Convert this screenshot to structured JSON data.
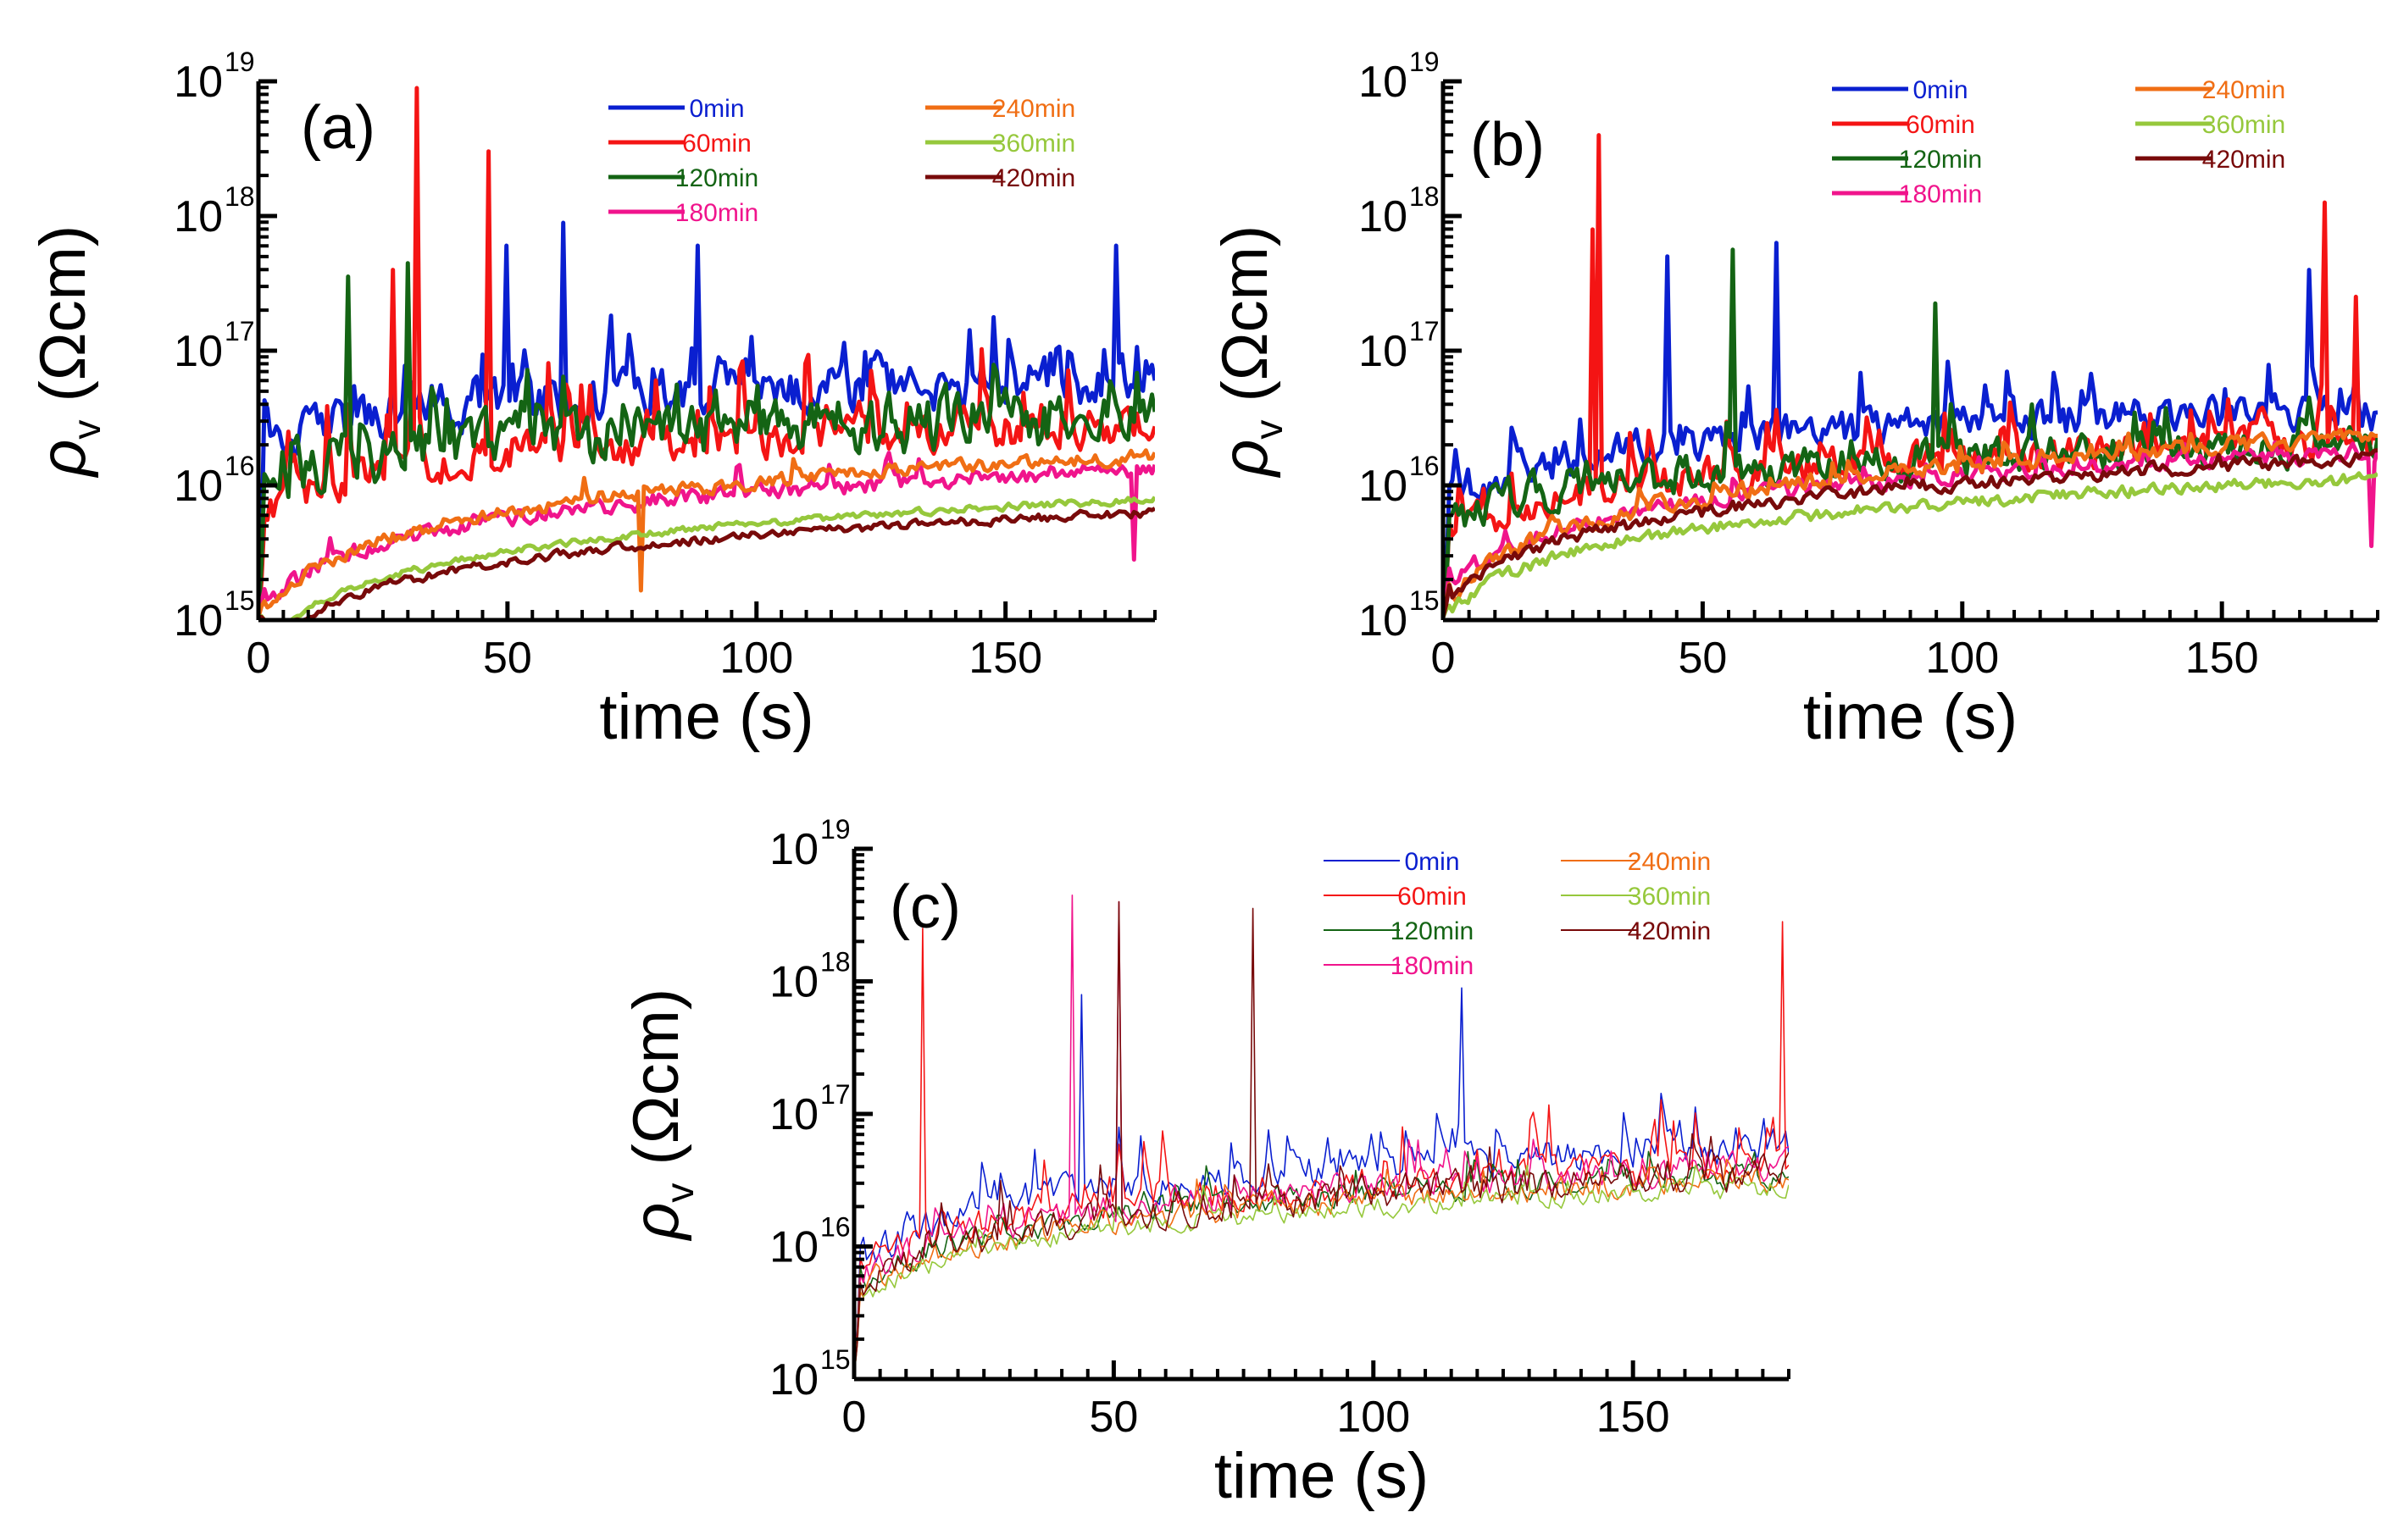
{
  "chart_data": [
    {
      "type": "line",
      "panel_label": "(a)",
      "xlabel": "time (s)",
      "ylabel_symbol": "ρ",
      "ylabel_sub": "v",
      "ylabel_unit": " (Ωcm)",
      "yscale": "log",
      "xlim": [
        0,
        180
      ],
      "ylim": [
        1000000000000000.0,
        1e+19
      ],
      "xticks": [
        "0",
        "50",
        "100",
        "150"
      ],
      "xtick_values": [
        0,
        50,
        100,
        150
      ],
      "yticks": [
        {
          "base": "10",
          "exp": "15",
          "value": 1000000000000000.0
        },
        {
          "base": "10",
          "exp": "16",
          "value": 1e+16
        },
        {
          "base": "10",
          "exp": "17",
          "value": 1e+17
        },
        {
          "base": "10",
          "exp": "18",
          "value": 1e+18
        },
        {
          "base": "10",
          "exp": "19",
          "value": 1e+19
        }
      ],
      "legend": "top-right",
      "line_weight": "thick",
      "series": [
        {
          "name": "0min",
          "color": "#0a1fd0",
          "base_log": 16.78,
          "rise": 0.35,
          "noise": 0.28,
          "spike_prob": 0.14,
          "spike_amp": 0.75,
          "peaks": [
            [
              61,
              17.95
            ],
            [
              50,
              17.78
            ],
            [
              88,
              17.78
            ],
            [
              172,
              17.78
            ]
          ]
        },
        {
          "name": "60min",
          "color": "#f41414",
          "base_log": 16.45,
          "rise": 0.45,
          "noise": 0.22,
          "spike_prob": 0.13,
          "spike_amp": 1.05,
          "peaks": [
            [
              32,
              18.95
            ],
            [
              46,
              18.48
            ],
            [
              27,
              17.6
            ]
          ]
        },
        {
          "name": "120min",
          "color": "#146414",
          "base_log": 16.5,
          "rise": 0.35,
          "noise": 0.33,
          "spike_prob": 0.12,
          "spike_amp": 0.7,
          "peaks": [
            [
              30,
              17.65
            ],
            [
              18,
              17.55
            ]
          ]
        },
        {
          "name": "180min",
          "color": "#f0148c",
          "base_log": 16.12,
          "rise": 0.7,
          "noise": 0.1,
          "spike_prob": 0.04,
          "spike_amp": 0.35,
          "peaks": [
            [
              176,
              15.45
            ]
          ]
        },
        {
          "name": "240min",
          "color": "#f06e14",
          "base_log": 16.22,
          "rise": 0.8,
          "noise": 0.08,
          "spike_prob": 0.03,
          "spike_amp": 0.3,
          "peaks": [
            [
              77,
              15.22
            ]
          ]
        },
        {
          "name": "360min",
          "color": "#96c83c",
          "base_log": 15.9,
          "rise": 0.75,
          "noise": 0.04,
          "spike_prob": 0.0,
          "spike_amp": 0.0,
          "peaks": []
        },
        {
          "name": "420min",
          "color": "#780a0a",
          "base_log": 15.8,
          "rise": 0.7,
          "noise": 0.05,
          "spike_prob": 0.0,
          "spike_amp": 0.0,
          "peaks": []
        }
      ]
    },
    {
      "type": "line",
      "panel_label": "(b)",
      "xlabel": "time (s)",
      "ylabel_symbol": "ρ",
      "ylabel_sub": "v",
      "ylabel_unit": " (Ωcm)",
      "yscale": "log",
      "xlim": [
        0,
        180
      ],
      "ylim": [
        1000000000000000.0,
        1e+19
      ],
      "xticks": [
        "0",
        "50",
        "100",
        "150"
      ],
      "xtick_values": [
        0,
        50,
        100,
        150
      ],
      "yticks": [
        {
          "base": "10",
          "exp": "15",
          "value": 1000000000000000.0
        },
        {
          "base": "10",
          "exp": "16",
          "value": 1e+16
        },
        {
          "base": "10",
          "exp": "17",
          "value": 1e+17
        },
        {
          "base": "10",
          "exp": "18",
          "value": 1e+18
        },
        {
          "base": "10",
          "exp": "19",
          "value": 1e+19
        }
      ],
      "legend": "top-right",
      "line_weight": "thick",
      "series": [
        {
          "name": "0min",
          "color": "#0a1fd0",
          "base_log": 16.55,
          "rise": 0.45,
          "noise": 0.22,
          "spike_prob": 0.1,
          "spike_amp": 0.65,
          "peaks": [
            [
              64,
              17.8
            ],
            [
              43,
              17.7
            ],
            [
              167,
              17.6
            ]
          ]
        },
        {
          "name": "60min",
          "color": "#f41414",
          "base_log": 16.32,
          "rise": 0.5,
          "noise": 0.2,
          "spike_prob": 0.1,
          "spike_amp": 0.75,
          "peaks": [
            [
              30,
              18.6
            ],
            [
              29,
              17.9
            ],
            [
              170,
              18.1
            ],
            [
              176,
              17.4
            ]
          ]
        },
        {
          "name": "120min",
          "color": "#146414",
          "base_log": 16.3,
          "rise": 0.4,
          "noise": 0.22,
          "spike_prob": 0.08,
          "spike_amp": 0.6,
          "peaks": [
            [
              56,
              17.75
            ],
            [
              95,
              17.35
            ]
          ]
        },
        {
          "name": "180min",
          "color": "#f0148c",
          "base_log": 16.25,
          "rise": 0.7,
          "noise": 0.1,
          "spike_prob": 0.04,
          "spike_amp": 0.3,
          "peaks": [
            [
              179,
              15.55
            ]
          ]
        },
        {
          "name": "240min",
          "color": "#f06e14",
          "base_log": 16.35,
          "rise": 0.85,
          "noise": 0.1,
          "spike_prob": 0.06,
          "spike_amp": 0.3,
          "peaks": []
        },
        {
          "name": "360min",
          "color": "#96c83c",
          "base_log": 16.05,
          "rise": 0.7,
          "noise": 0.07,
          "spike_prob": 0.0,
          "spike_amp": 0.0,
          "peaks": []
        },
        {
          "name": "420min",
          "color": "#780a0a",
          "base_log": 16.2,
          "rise": 0.75,
          "noise": 0.08,
          "spike_prob": 0.02,
          "spike_amp": 0.2,
          "peaks": []
        }
      ]
    },
    {
      "type": "line",
      "panel_label": "(c)",
      "xlabel": "time (s)",
      "ylabel_symbol": "ρ",
      "ylabel_sub": "v",
      "ylabel_unit": " (Ωcm)",
      "yscale": "log",
      "xlim": [
        0,
        180
      ],
      "ylim": [
        1000000000000000.0,
        1e+19
      ],
      "xticks": [
        "0",
        "50",
        "100",
        "150"
      ],
      "xtick_values": [
        0,
        50,
        100,
        150
      ],
      "yticks": [
        {
          "base": "10",
          "exp": "15",
          "value": 1000000000000000.0
        },
        {
          "base": "10",
          "exp": "16",
          "value": 1e+16
        },
        {
          "base": "10",
          "exp": "17",
          "value": 1e+17
        },
        {
          "base": "10",
          "exp": "18",
          "value": 1e+18
        },
        {
          "base": "10",
          "exp": "19",
          "value": 1e+19
        }
      ],
      "legend": "top-right",
      "line_weight": "thin",
      "series": [
        {
          "name": "0min",
          "color": "#0a1fd0",
          "base_log": 16.75,
          "rise": 0.6,
          "noise": 0.2,
          "spike_prob": 0.1,
          "spike_amp": 0.7,
          "peaks": [
            [
              44,
              17.9
            ],
            [
              117,
              17.95
            ]
          ]
        },
        {
          "name": "60min",
          "color": "#f41414",
          "base_log": 16.6,
          "rise": 0.55,
          "noise": 0.2,
          "spike_prob": 0.12,
          "spike_amp": 0.8,
          "peaks": [
            [
              13,
              18.4
            ],
            [
              179,
              18.45
            ]
          ]
        },
        {
          "name": "120min",
          "color": "#146414",
          "base_log": 16.55,
          "rise": 0.6,
          "noise": 0.15,
          "spike_prob": 0.05,
          "spike_amp": 0.5,
          "peaks": []
        },
        {
          "name": "180min",
          "color": "#f0148c",
          "base_log": 16.6,
          "rise": 0.6,
          "noise": 0.18,
          "spike_prob": 0.07,
          "spike_amp": 0.6,
          "peaks": [
            [
              42,
              18.65
            ],
            [
              51,
              18.6
            ]
          ]
        },
        {
          "name": "240min",
          "color": "#f06e14",
          "base_log": 16.5,
          "rise": 0.6,
          "noise": 0.15,
          "spike_prob": 0.05,
          "spike_amp": 0.5,
          "peaks": []
        },
        {
          "name": "360min",
          "color": "#96c83c",
          "base_log": 16.45,
          "rise": 0.6,
          "noise": 0.12,
          "spike_prob": 0.03,
          "spike_amp": 0.4,
          "peaks": []
        },
        {
          "name": "420min",
          "color": "#780a0a",
          "base_log": 16.55,
          "rise": 0.6,
          "noise": 0.2,
          "spike_prob": 0.07,
          "spike_amp": 0.6,
          "peaks": [
            [
              77,
              18.55
            ],
            [
              51,
              18.6
            ]
          ]
        }
      ]
    }
  ]
}
